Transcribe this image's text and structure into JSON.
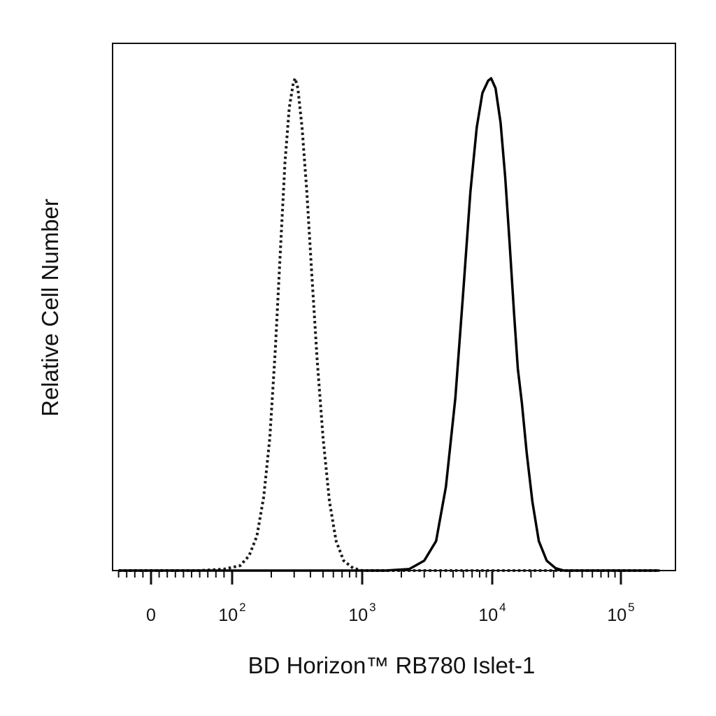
{
  "chart_data": {
    "type": "line",
    "title": "",
    "xlabel": "BD Horizon™ RB780  Islet-1",
    "ylabel": "Relative Cell Number",
    "x_scale": "biexponential",
    "xlim": [
      -50,
      200000
    ],
    "ylim": [
      0,
      1
    ],
    "grid": false,
    "legend": "none",
    "x_ticks": [
      {
        "value": 0,
        "base": "0",
        "exp": ""
      },
      {
        "value": 100,
        "base": "10",
        "exp": "2"
      },
      {
        "value": 1000,
        "base": "10",
        "exp": "3"
      },
      {
        "value": 10000,
        "base": "10",
        "exp": "4"
      },
      {
        "value": 100000,
        "base": "10",
        "exp": "5"
      }
    ],
    "series": [
      {
        "style": "dotted",
        "color": "#1a1a1a",
        "points": [
          [
            -40,
            0
          ],
          [
            60,
            0
          ],
          [
            90,
            0.003
          ],
          [
            115,
            0.01
          ],
          [
            135,
            0.03
          ],
          [
            155,
            0.07
          ],
          [
            175,
            0.15
          ],
          [
            195,
            0.27
          ],
          [
            215,
            0.45
          ],
          [
            235,
            0.65
          ],
          [
            255,
            0.83
          ],
          [
            275,
            0.94
          ],
          [
            295,
            0.99
          ],
          [
            305,
            1.0
          ],
          [
            320,
            0.98
          ],
          [
            345,
            0.9
          ],
          [
            375,
            0.77
          ],
          [
            410,
            0.6
          ],
          [
            450,
            0.43
          ],
          [
            500,
            0.27
          ],
          [
            560,
            0.14
          ],
          [
            630,
            0.06
          ],
          [
            720,
            0.02
          ],
          [
            850,
            0.005
          ],
          [
            1000,
            0.0
          ],
          [
            200000,
            0.0
          ]
        ]
      },
      {
        "style": "solid",
        "color": "#000000",
        "points": [
          [
            -40,
            0
          ],
          [
            1500,
            0
          ],
          [
            2300,
            0.003
          ],
          [
            3000,
            0.02
          ],
          [
            3700,
            0.06
          ],
          [
            4400,
            0.17
          ],
          [
            5200,
            0.35
          ],
          [
            6000,
            0.57
          ],
          [
            6800,
            0.77
          ],
          [
            7600,
            0.9
          ],
          [
            8400,
            0.97
          ],
          [
            9300,
            0.995
          ],
          [
            9800,
            1.0
          ],
          [
            10600,
            0.98
          ],
          [
            11600,
            0.91
          ],
          [
            12600,
            0.8
          ],
          [
            13600,
            0.67
          ],
          [
            14800,
            0.52
          ],
          [
            15800,
            0.41
          ],
          [
            17000,
            0.34
          ],
          [
            18500,
            0.24
          ],
          [
            20500,
            0.14
          ],
          [
            23000,
            0.06
          ],
          [
            26500,
            0.02
          ],
          [
            31000,
            0.005
          ],
          [
            36000,
            0.0
          ],
          [
            200000,
            0.0
          ]
        ]
      }
    ]
  }
}
